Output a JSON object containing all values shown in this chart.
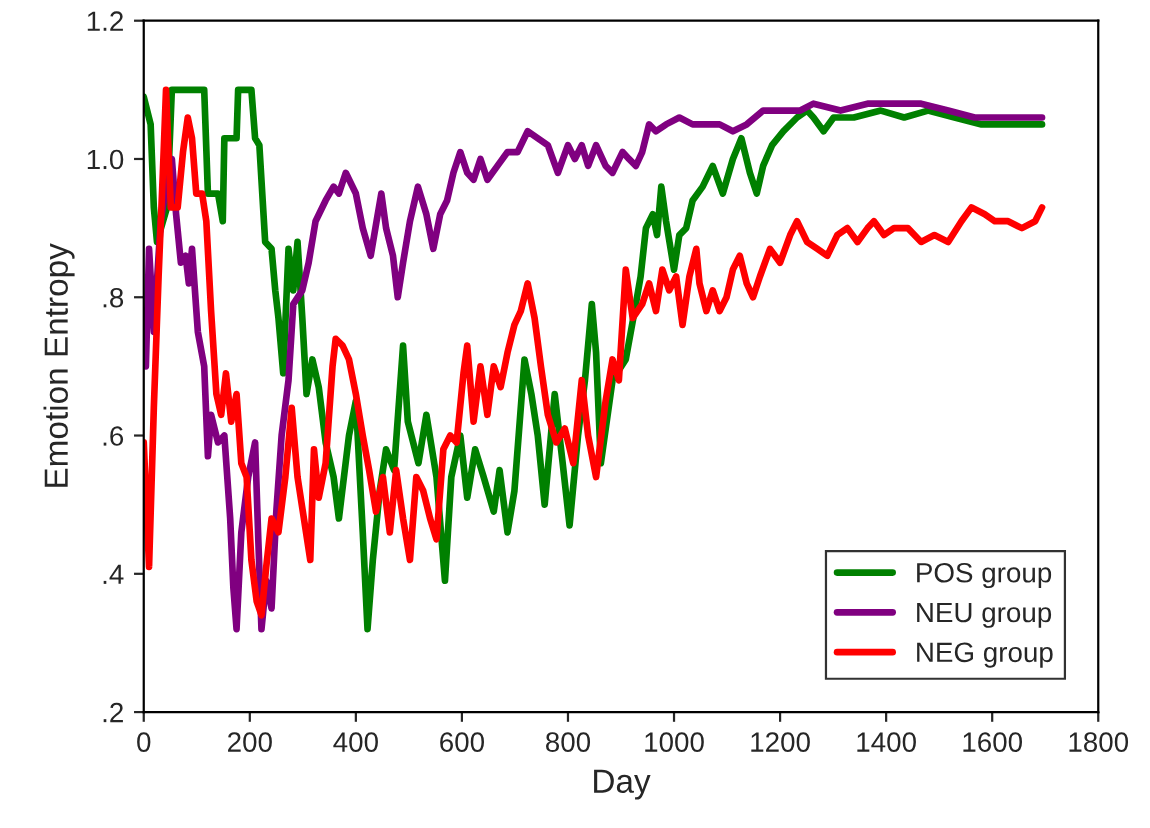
{
  "chart_data": {
    "type": "line",
    "xlabel": "Day",
    "ylabel": "Emotion Entropy",
    "xlim": [
      0,
      1800
    ],
    "xticks": [
      0,
      200,
      400,
      600,
      800,
      1000,
      1200,
      1400,
      1600,
      1800
    ],
    "ylim": [
      0.2,
      1.2
    ],
    "yticks": [
      {
        "value": 0.2,
        "label": ".2"
      },
      {
        "value": 0.4,
        "label": ".4"
      },
      {
        "value": 0.6,
        "label": ".6"
      },
      {
        "value": 0.8,
        "label": ".8"
      },
      {
        "value": 1.0,
        "label": "1.0"
      },
      {
        "value": 1.2,
        "label": "1.2"
      }
    ],
    "grid": false,
    "legend": "bottom right",
    "marker": "none",
    "line_style": "solid",
    "series": [
      {
        "name": "POS group",
        "color": "#008000",
        "x": [
          0,
          13,
          19,
          25,
          44,
          53,
          114,
          121,
          140,
          149,
          152,
          175,
          178,
          203,
          210,
          218,
          229,
          241,
          248,
          254,
          263,
          273,
          282,
          290,
          299,
          307,
          318,
          330,
          343,
          358,
          368,
          387,
          400,
          413,
          422,
          432,
          445,
          457,
          472,
          489,
          498,
          508,
          518,
          533,
          552,
          568,
          580,
          597,
          610,
          625,
          641,
          660,
          671,
          686,
          699,
          718,
          731,
          743,
          756,
          775,
          790,
          803,
          819,
          832,
          845,
          853,
          862,
          884,
          909,
          928,
          937,
          947,
          960,
          968,
          976,
          985,
          1000,
          1010,
          1023,
          1035,
          1054,
          1073,
          1092,
          1111,
          1127,
          1143,
          1156,
          1168,
          1185,
          1206,
          1232,
          1251,
          1263,
          1282,
          1301,
          1339,
          1390,
          1434,
          1479,
          1529,
          1580,
          1643,
          1694
        ],
        "values": [
          1.09,
          1.05,
          0.93,
          0.88,
          0.93,
          1.1,
          1.1,
          0.95,
          0.95,
          0.91,
          1.03,
          1.03,
          1.1,
          1.1,
          1.03,
          1.02,
          0.88,
          0.87,
          0.81,
          0.77,
          0.69,
          0.87,
          0.81,
          0.88,
          0.77,
          0.66,
          0.71,
          0.67,
          0.59,
          0.54,
          0.48,
          0.6,
          0.65,
          0.46,
          0.32,
          0.42,
          0.52,
          0.58,
          0.55,
          0.73,
          0.62,
          0.59,
          0.56,
          0.63,
          0.54,
          0.39,
          0.54,
          0.6,
          0.51,
          0.58,
          0.54,
          0.49,
          0.55,
          0.46,
          0.52,
          0.71,
          0.66,
          0.6,
          0.5,
          0.66,
          0.56,
          0.47,
          0.6,
          0.68,
          0.79,
          0.72,
          0.56,
          0.68,
          0.71,
          0.79,
          0.83,
          0.9,
          0.92,
          0.89,
          0.96,
          0.91,
          0.84,
          0.89,
          0.9,
          0.94,
          0.96,
          0.99,
          0.95,
          1.0,
          1.03,
          0.98,
          0.95,
          0.99,
          1.02,
          1.04,
          1.06,
          1.07,
          1.06,
          1.04,
          1.06,
          1.06,
          1.07,
          1.06,
          1.07,
          1.06,
          1.05,
          1.05,
          1.05
        ]
      },
      {
        "name": "NEU group",
        "color": "#800080",
        "x": [
          0,
          4,
          10,
          19,
          32,
          44,
          53,
          61,
          70,
          79,
          85,
          91,
          102,
          114,
          121,
          127,
          140,
          152,
          163,
          169,
          175,
          184,
          197,
          210,
          216,
          222,
          231,
          241,
          250,
          260,
          273,
          282,
          299,
          311,
          324,
          343,
          358,
          368,
          381,
          400,
          413,
          428,
          439,
          448,
          457,
          470,
          479,
          489,
          502,
          517,
          533,
          546,
          559,
          572,
          584,
          597,
          610,
          622,
          635,
          648,
          667,
          686,
          705,
          724,
          743,
          762,
          781,
          800,
          813,
          826,
          838,
          853,
          871,
          884,
          903,
          915,
          928,
          940,
          953,
          966,
          985,
          1010,
          1035,
          1061,
          1086,
          1111,
          1137,
          1168,
          1200,
          1238,
          1263,
          1314,
          1365,
          1415,
          1466,
          1517,
          1567,
          1618,
          1668,
          1694
        ],
        "values": [
          0.78,
          0.7,
          0.87,
          0.75,
          0.91,
          0.97,
          1.0,
          0.92,
          0.85,
          0.86,
          0.82,
          0.87,
          0.75,
          0.7,
          0.57,
          0.63,
          0.59,
          0.6,
          0.48,
          0.38,
          0.32,
          0.46,
          0.54,
          0.59,
          0.45,
          0.32,
          0.39,
          0.35,
          0.49,
          0.6,
          0.68,
          0.79,
          0.81,
          0.85,
          0.91,
          0.94,
          0.96,
          0.95,
          0.98,
          0.95,
          0.9,
          0.86,
          0.91,
          0.95,
          0.9,
          0.86,
          0.8,
          0.85,
          0.91,
          0.96,
          0.92,
          0.87,
          0.92,
          0.94,
          0.98,
          1.01,
          0.98,
          0.97,
          1.0,
          0.97,
          0.99,
          1.01,
          1.01,
          1.04,
          1.03,
          1.02,
          0.98,
          1.02,
          1.0,
          1.02,
          0.99,
          1.02,
          0.99,
          0.98,
          1.01,
          1.0,
          0.99,
          1.01,
          1.05,
          1.04,
          1.05,
          1.06,
          1.05,
          1.05,
          1.05,
          1.04,
          1.05,
          1.07,
          1.07,
          1.07,
          1.08,
          1.07,
          1.08,
          1.08,
          1.08,
          1.07,
          1.06,
          1.06,
          1.06,
          1.06
        ]
      },
      {
        "name": "NEG group",
        "color": "#ff0000",
        "x": [
          0,
          10,
          19,
          28,
          36,
          42,
          51,
          64,
          74,
          83,
          91,
          99,
          110,
          118,
          127,
          137,
          146,
          155,
          165,
          175,
          184,
          194,
          203,
          213,
          222,
          231,
          241,
          254,
          267,
          279,
          290,
          302,
          314,
          321,
          330,
          343,
          356,
          362,
          375,
          387,
          400,
          413,
          425,
          438,
          451,
          464,
          476,
          489,
          502,
          514,
          527,
          540,
          552,
          565,
          578,
          590,
          603,
          610,
          622,
          635,
          648,
          660,
          673,
          686,
          699,
          711,
          724,
          737,
          749,
          762,
          778,
          794,
          810,
          826,
          838,
          853,
          871,
          884,
          896,
          909,
          922,
          940,
          953,
          966,
          978,
          991,
          1004,
          1016,
          1029,
          1042,
          1048,
          1061,
          1073,
          1086,
          1099,
          1111,
          1124,
          1137,
          1149,
          1162,
          1181,
          1200,
          1219,
          1232,
          1251,
          1270,
          1289,
          1308,
          1327,
          1346,
          1365,
          1377,
          1396,
          1415,
          1441,
          1466,
          1491,
          1517,
          1542,
          1561,
          1586,
          1605,
          1630,
          1656,
          1681,
          1694
        ],
        "values": [
          0.59,
          0.41,
          0.64,
          0.83,
          0.98,
          1.1,
          0.93,
          0.93,
          1.01,
          1.06,
          1.03,
          0.95,
          0.95,
          0.91,
          0.78,
          0.66,
          0.63,
          0.69,
          0.62,
          0.66,
          0.56,
          0.54,
          0.42,
          0.36,
          0.34,
          0.41,
          0.48,
          0.46,
          0.54,
          0.64,
          0.54,
          0.48,
          0.42,
          0.58,
          0.51,
          0.56,
          0.7,
          0.74,
          0.73,
          0.71,
          0.66,
          0.6,
          0.55,
          0.49,
          0.54,
          0.46,
          0.55,
          0.48,
          0.42,
          0.54,
          0.52,
          0.48,
          0.45,
          0.58,
          0.6,
          0.59,
          0.69,
          0.73,
          0.62,
          0.7,
          0.63,
          0.7,
          0.67,
          0.72,
          0.76,
          0.78,
          0.82,
          0.77,
          0.7,
          0.63,
          0.59,
          0.61,
          0.56,
          0.68,
          0.6,
          0.54,
          0.65,
          0.71,
          0.68,
          0.84,
          0.77,
          0.79,
          0.82,
          0.78,
          0.84,
          0.81,
          0.83,
          0.76,
          0.83,
          0.87,
          0.82,
          0.78,
          0.81,
          0.78,
          0.8,
          0.84,
          0.86,
          0.82,
          0.8,
          0.83,
          0.87,
          0.85,
          0.89,
          0.91,
          0.88,
          0.87,
          0.86,
          0.89,
          0.9,
          0.88,
          0.9,
          0.91,
          0.89,
          0.9,
          0.9,
          0.88,
          0.89,
          0.88,
          0.91,
          0.93,
          0.92,
          0.91,
          0.91,
          0.9,
          0.91,
          0.93
        ]
      }
    ]
  }
}
